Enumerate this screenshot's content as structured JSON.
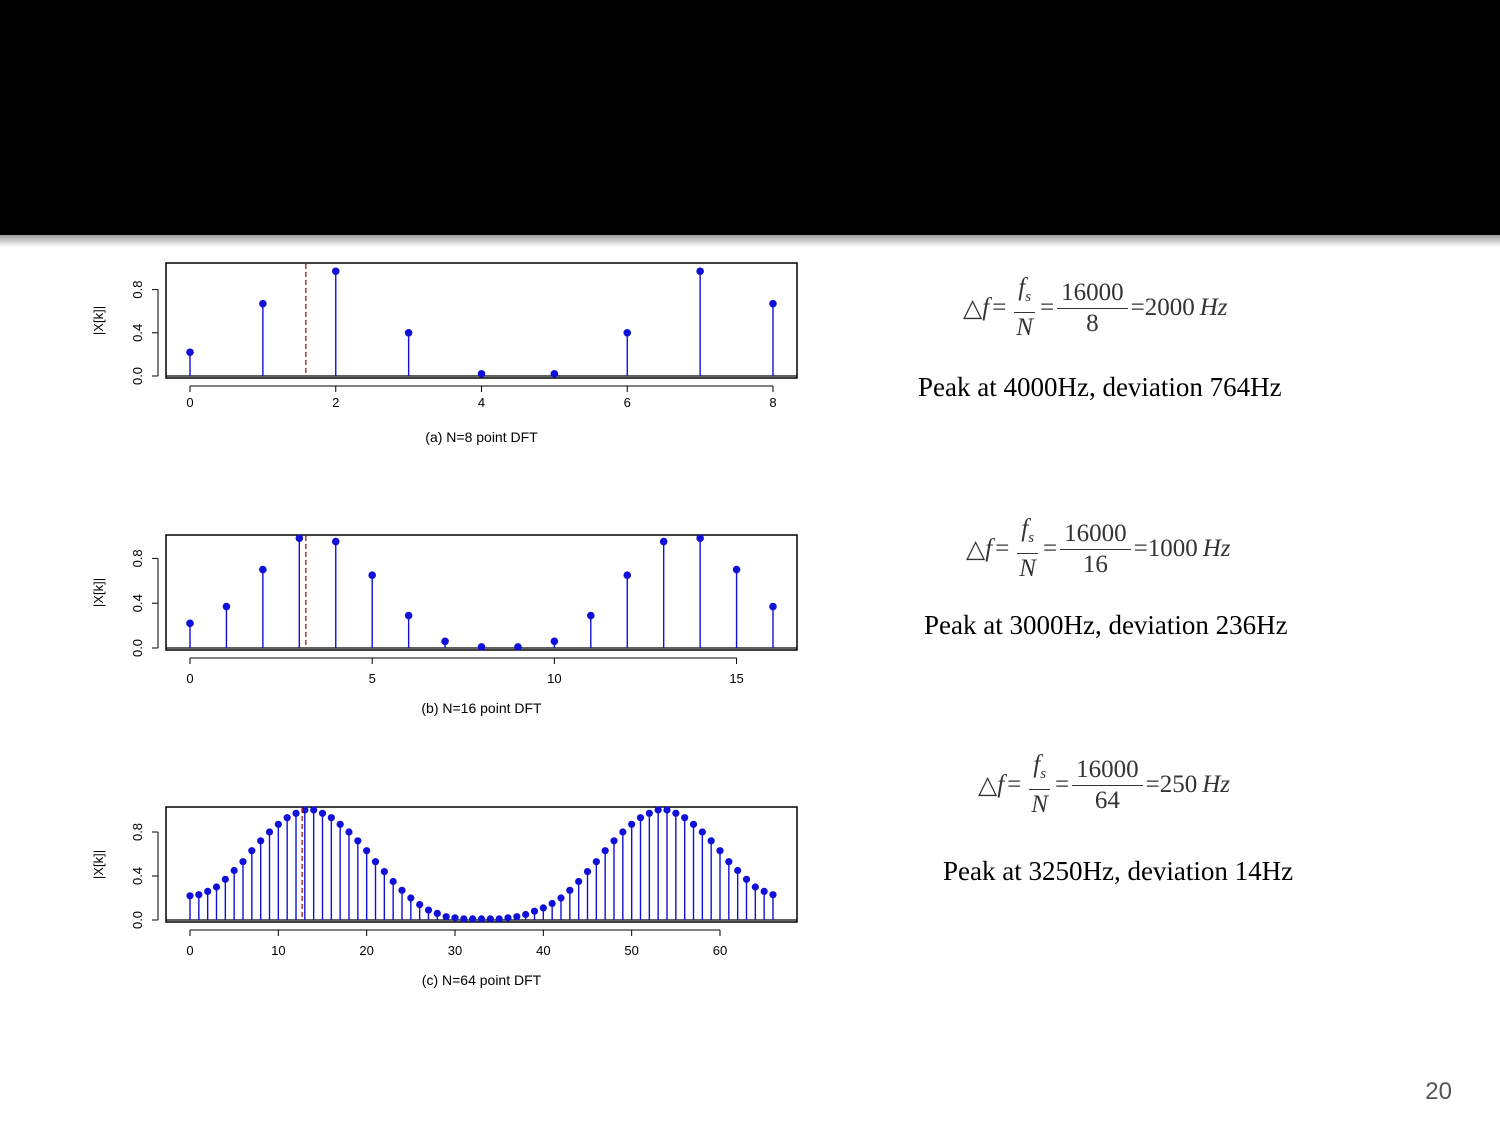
{
  "slide": {
    "page_number": "20"
  },
  "chart_data": [
    {
      "type": "stem",
      "caption": "(a) N=8 point DFT",
      "ylabel": "|X[k]|",
      "xlim": [
        0,
        8
      ],
      "ylim": [
        0,
        1
      ],
      "xticks": [
        0,
        2,
        4,
        6,
        8
      ],
      "yticks": [
        0.0,
        0.4,
        0.8
      ],
      "ytick_labels": [
        "0.0",
        "0.4",
        "0.8"
      ],
      "marker_x": 1.59,
      "x": [
        0,
        1,
        2,
        3,
        4,
        5,
        6,
        7,
        8
      ],
      "values": [
        0.22,
        0.67,
        0.97,
        0.4,
        0.02,
        0.02,
        0.4,
        0.97,
        0.67
      ],
      "stem_color": "#1010d8",
      "marker_color": "#9b1b1b"
    },
    {
      "type": "stem",
      "caption": "(b) N=16 point DFT",
      "ylabel": "|X[k]|",
      "xlim": [
        0,
        16
      ],
      "ylim": [
        0,
        1
      ],
      "xticks": [
        0,
        5,
        10,
        15
      ],
      "yticks": [
        0.0,
        0.4,
        0.8
      ],
      "ytick_labels": [
        "0.0",
        "0.4",
        "0.8"
      ],
      "marker_x": 3.18,
      "x": [
        0,
        1,
        2,
        3,
        4,
        5,
        6,
        7,
        8,
        9,
        10,
        11,
        12,
        13,
        14,
        15,
        16
      ],
      "values": [
        0.22,
        0.37,
        0.7,
        0.98,
        0.95,
        0.65,
        0.29,
        0.06,
        0.01,
        0.01,
        0.06,
        0.29,
        0.65,
        0.95,
        0.98,
        0.7,
        0.37
      ],
      "stem_color": "#1010d8",
      "marker_color": "#9b1b1b"
    },
    {
      "type": "stem",
      "caption": "(c) N=64 point DFT",
      "ylabel": "|X[k]|",
      "xlim": [
        0,
        66
      ],
      "ylim": [
        0,
        1
      ],
      "xticks": [
        0,
        10,
        20,
        30,
        40,
        50,
        60
      ],
      "yticks": [
        0.0,
        0.4,
        0.8
      ],
      "ytick_labels": [
        "0.0",
        "0.4",
        "0.8"
      ],
      "marker_x": 12.7,
      "x": [
        0,
        1,
        2,
        3,
        4,
        5,
        6,
        7,
        8,
        9,
        10,
        11,
        12,
        13,
        14,
        15,
        16,
        17,
        18,
        19,
        20,
        21,
        22,
        23,
        24,
        25,
        26,
        27,
        28,
        29,
        30,
        31,
        32,
        33,
        34,
        35,
        36,
        37,
        38,
        39,
        40,
        41,
        42,
        43,
        44,
        45,
        46,
        47,
        48,
        49,
        50,
        51,
        52,
        53,
        54,
        55,
        56,
        57,
        58,
        59,
        60,
        61,
        62,
        63,
        64,
        65,
        66
      ],
      "values": [
        0.22,
        0.23,
        0.26,
        0.3,
        0.37,
        0.45,
        0.53,
        0.63,
        0.72,
        0.8,
        0.87,
        0.93,
        0.97,
        1.0,
        1.0,
        0.97,
        0.93,
        0.87,
        0.8,
        0.72,
        0.63,
        0.53,
        0.44,
        0.35,
        0.27,
        0.2,
        0.14,
        0.09,
        0.06,
        0.03,
        0.02,
        0.01,
        0.01,
        0.01,
        0.01,
        0.01,
        0.02,
        0.03,
        0.05,
        0.08,
        0.11,
        0.15,
        0.2,
        0.27,
        0.35,
        0.44,
        0.53,
        0.63,
        0.72,
        0.8,
        0.87,
        0.93,
        0.97,
        1.0,
        1.0,
        0.97,
        0.93,
        0.87,
        0.8,
        0.72,
        0.63,
        0.53,
        0.45,
        0.37,
        0.3,
        0.26,
        0.23
      ],
      "stem_color": "#1010d8",
      "marker_color": "#9b1b1b"
    }
  ],
  "annotations": [
    {
      "delta": "△",
      "f": "f",
      "equals": "=",
      "fs": "f",
      "fs_sub": "s",
      "N": "N",
      "numerator": "16000",
      "denominator": "8",
      "result": "2000",
      "unit": "Hz",
      "peak_text": "Peak at 4000Hz, deviation 764Hz"
    },
    {
      "delta": "△",
      "f": "f",
      "equals": "=",
      "fs": "f",
      "fs_sub": "s",
      "N": "N",
      "numerator": "16000",
      "denominator": "16",
      "result": "1000",
      "unit": "Hz",
      "peak_text": "Peak at 3000Hz, deviation 236Hz"
    },
    {
      "delta": "△",
      "f": "f",
      "equals": "=",
      "fs": "f",
      "fs_sub": "s",
      "N": "N",
      "numerator": "16000",
      "denominator": "64",
      "result": "250",
      "unit": "Hz",
      "peak_text": "Peak at 3250Hz, deviation 14Hz"
    }
  ]
}
